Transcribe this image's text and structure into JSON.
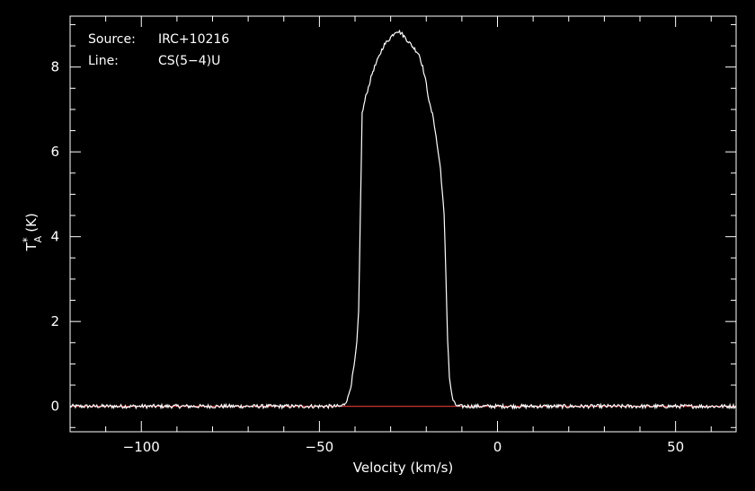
{
  "chart_data": {
    "type": "line",
    "annotations": [
      {
        "label": "Source:",
        "value": "IRC+10216"
      },
      {
        "label": "Line:",
        "value": "CS(5−4)U"
      }
    ],
    "xlabel": "Velocity (km/s)",
    "ylabel_main": "T",
    "ylabel_sup": "*",
    "ylabel_sub": "A",
    "ylabel_unit": "(K)",
    "xlim": [
      -120,
      67
    ],
    "ylim": [
      -0.6,
      9.2
    ],
    "xticks": [
      -100,
      -50,
      0,
      50
    ],
    "xtick_labels": [
      "−100",
      "−50",
      "0",
      "50"
    ],
    "yticks": [
      0,
      2,
      4,
      6,
      8
    ],
    "ytick_labels": [
      "0",
      "2",
      "4",
      "6",
      "8"
    ],
    "baseline": 0,
    "grid": false,
    "series": [
      {
        "x": [
          -120,
          -80,
          -44,
          -43,
          -42,
          -41,
          -40,
          -39.5,
          -39,
          -38.5,
          -38,
          -37,
          -36,
          -35,
          -34,
          -33,
          -32,
          -31,
          -30,
          -29,
          -28.5,
          -28,
          -27,
          -26,
          -25,
          -24,
          -23,
          -22,
          -21,
          -20,
          -19,
          -18,
          -17,
          -16,
          -15,
          -14.5,
          -14,
          -13.5,
          -13,
          -12.5,
          -12,
          -11,
          -10,
          0,
          67
        ],
        "y": [
          0.0,
          0.0,
          0.0,
          0.05,
          0.2,
          0.55,
          1.1,
          1.5,
          2.2,
          4.5,
          6.9,
          7.3,
          7.6,
          7.9,
          8.1,
          8.3,
          8.5,
          8.6,
          8.7,
          8.8,
          8.85,
          8.85,
          8.8,
          8.7,
          8.6,
          8.5,
          8.4,
          8.3,
          8.0,
          7.6,
          7.1,
          6.8,
          6.2,
          5.6,
          4.5,
          3.1,
          1.6,
          0.7,
          0.35,
          0.15,
          0.05,
          0.0,
          0.0,
          0.0,
          0.0
        ],
        "color": "#ffffff"
      }
    ],
    "baseline_color": "#cc3333",
    "axis_color": "#ffffff",
    "background": "#000000"
  }
}
